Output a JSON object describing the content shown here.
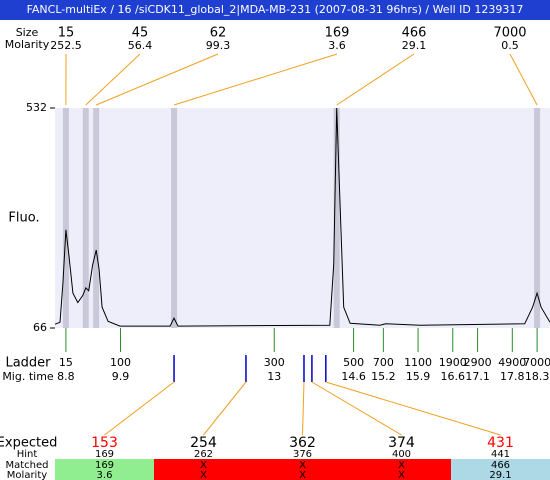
{
  "title": "FANCL-multiEx / 16 /siCDK11_global_2|MDA-MB-231 (2007-08-31 96hrs) / Well ID 1239317",
  "peaks": {
    "size_label": "Size",
    "molarity_label": "Molarity",
    "items": [
      {
        "size": 15,
        "molarity": 252.5,
        "time": 8.8
      },
      {
        "size": 45,
        "molarity": 56.4,
        "time": 9.2
      },
      {
        "size": 62,
        "molarity": 99.3,
        "time": 9.41
      },
      {
        "size": 169,
        "molarity": 3.6,
        "time": 10.98
      },
      {
        "size": 466,
        "molarity": 29.1,
        "time": 14.26
      },
      {
        "size": 7000,
        "molarity": 0.5,
        "time": 18.3
      }
    ]
  },
  "plot": {
    "ylabel": "Fluo.",
    "ylim": [
      66,
      532
    ],
    "yticks": [
      532,
      66
    ],
    "xlim": [
      8.58,
      18.56
    ],
    "trace": {
      "x": [
        8.58,
        8.68,
        8.74,
        8.8,
        8.86,
        8.94,
        9.04,
        9.14,
        9.2,
        9.26,
        9.34,
        9.41,
        9.47,
        9.53,
        9.65,
        9.89,
        10.9,
        10.98,
        11.06,
        14.12,
        14.2,
        14.26,
        14.32,
        14.4,
        14.53,
        15.13,
        15.25,
        15.94,
        18.05,
        18.21,
        18.3,
        18.38,
        18.56
      ],
      "y": [
        74,
        78,
        160,
        274,
        220,
        140,
        120,
        135,
        151,
        145,
        200,
        231,
        190,
        110,
        80,
        70,
        70,
        87,
        70,
        72,
        200,
        532,
        350,
        110,
        76,
        72,
        75,
        72,
        75,
        110,
        140,
        110,
        78
      ]
    }
  },
  "ladder": {
    "label": "Ladder",
    "time_label": "Mig. time",
    "sizes": [
      15,
      100,
      300,
      500,
      700,
      1100,
      1900,
      2900,
      4900,
      7000
    ],
    "times": [
      8.8,
      9.9,
      13,
      14.6,
      15.2,
      15.9,
      16.6,
      17.1,
      17.8,
      18.3
    ]
  },
  "expected": {
    "label": "Expected",
    "hint_label": "Hint",
    "matched_label": "Matched",
    "molarity_label": "Molarity",
    "sizes": [
      153,
      254,
      362,
      374,
      431
    ],
    "size_colors": [
      "#ff0000",
      "#000000",
      "#000000",
      "#000000",
      "#ff0000"
    ],
    "times": [
      10.98,
      12.43,
      13.6,
      13.76,
      14.04
    ],
    "hints": [
      169,
      262,
      376,
      400,
      441
    ],
    "matched": [
      169,
      "X",
      "X",
      "X",
      466
    ],
    "molarity": [
      3.6,
      "X",
      "X",
      "X",
      29.1
    ],
    "fills": [
      "#90ee90",
      "#ff0000",
      "#ff0000",
      "#ff0000",
      "#add8e6"
    ]
  }
}
